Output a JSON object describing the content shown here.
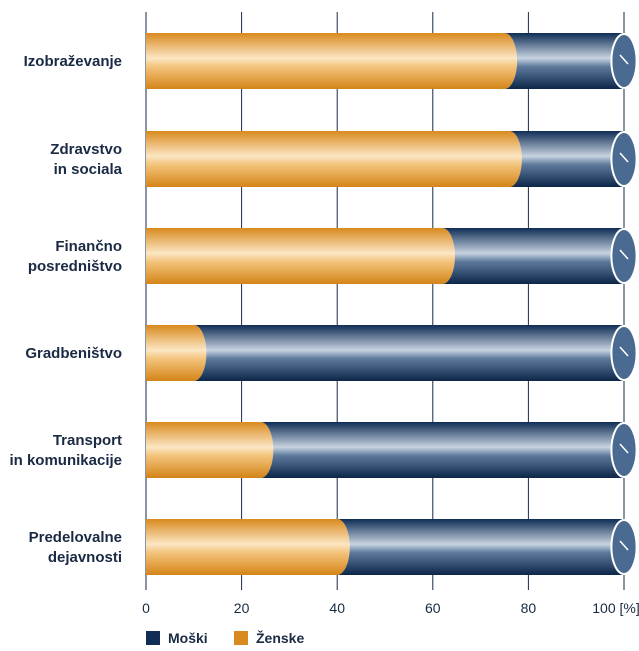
{
  "chart_data": {
    "type": "bar",
    "orientation": "horizontal",
    "stacked": true,
    "percent": true,
    "categories": [
      [
        "Izobraževanje"
      ],
      [
        "Zdravstvo",
        "in sociala"
      ],
      [
        "Finančno",
        "posredništvo"
      ],
      [
        "Gradbeništvo"
      ],
      [
        "Transport",
        "in komunikacije"
      ],
      [
        "Predelovalne",
        "dejavnosti"
      ]
    ],
    "series": [
      {
        "name": "Ženske",
        "values": [
          75,
          76,
          62,
          10,
          24,
          40
        ],
        "color": "#e0952e"
      },
      {
        "name": "Moški",
        "values": [
          25,
          24,
          38,
          90,
          76,
          60
        ],
        "color": "#1d3d66"
      }
    ],
    "xlim": [
      0,
      100
    ],
    "xticks": [
      "0",
      "20",
      "40",
      "60",
      "80",
      "100 [%]"
    ],
    "grid": true,
    "legend": {
      "position": "bottom-left",
      "entries": [
        {
          "label": "Moški",
          "color": "#0f2d55"
        },
        {
          "label": "Ženske",
          "color": "#d98a1e"
        }
      ]
    }
  }
}
